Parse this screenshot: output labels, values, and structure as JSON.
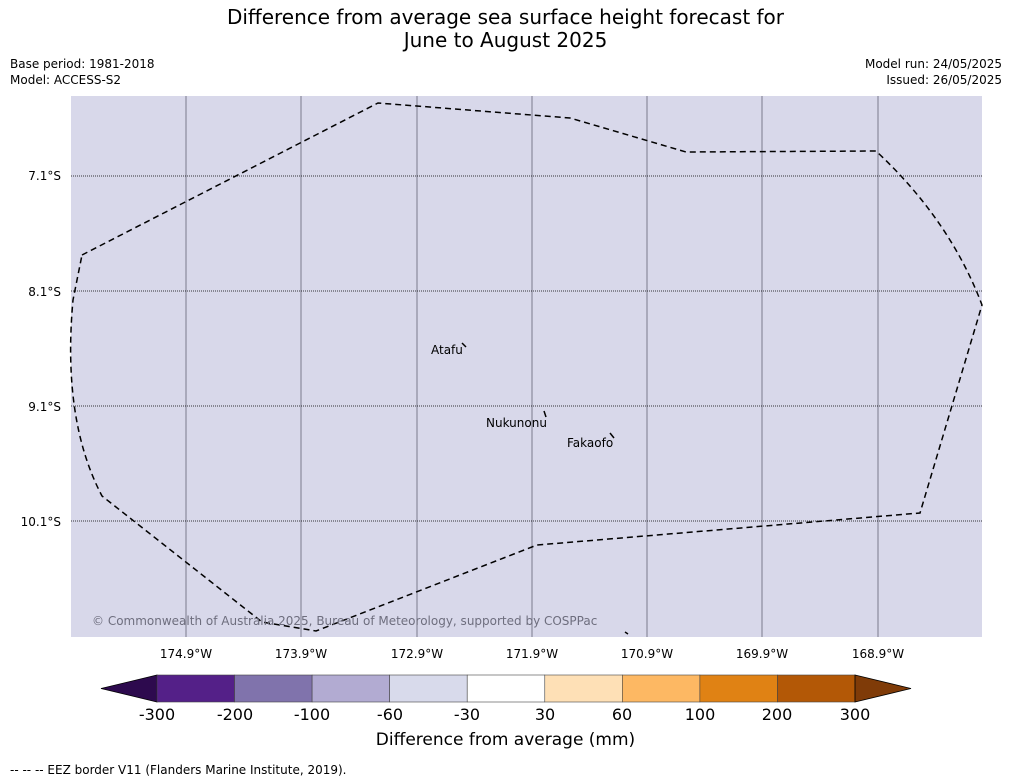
{
  "title_line1": "Difference from average sea surface height forecast for",
  "title_line2": "June to August 2025",
  "meta_left": {
    "base_period": "Base period: 1981-2018",
    "model": "Model: ACCESS-S2"
  },
  "meta_right": {
    "model_run": "Model run: 24/05/2025",
    "issued": "Issued: 26/05/2025"
  },
  "map": {
    "background": "#d8d8ea",
    "lat_labels": [
      "7.1°S",
      "8.1°S",
      "9.1°S",
      "10.1°S"
    ],
    "lon_labels": [
      "174.9°W",
      "173.9°W",
      "172.9°W",
      "171.9°W",
      "170.9°W",
      "169.9°W",
      "168.9°W"
    ],
    "places": [
      {
        "name": "Atafu"
      },
      {
        "name": "Nukunonu"
      },
      {
        "name": "Fakaofo"
      }
    ],
    "copyright": "© Commonwealth of Australia 2025, Bureau of Meteorology, supported by COSPPac"
  },
  "colorbar": {
    "title": "Difference from average (mm)",
    "ticks": [
      "-300",
      "-200",
      "-100",
      "-60",
      "-30",
      "30",
      "60",
      "100",
      "200",
      "300"
    ],
    "colors": [
      "#2d0a4e",
      "#542088",
      "#8073ac",
      "#b2abd2",
      "#d8daeb",
      "#ffffff",
      "#fee0b6",
      "#fdb863",
      "#e08214",
      "#b35806",
      "#7f3b08"
    ]
  },
  "footer": "--  --  -- EEZ border V11 (Flanders Marine Institute, 2019)."
}
